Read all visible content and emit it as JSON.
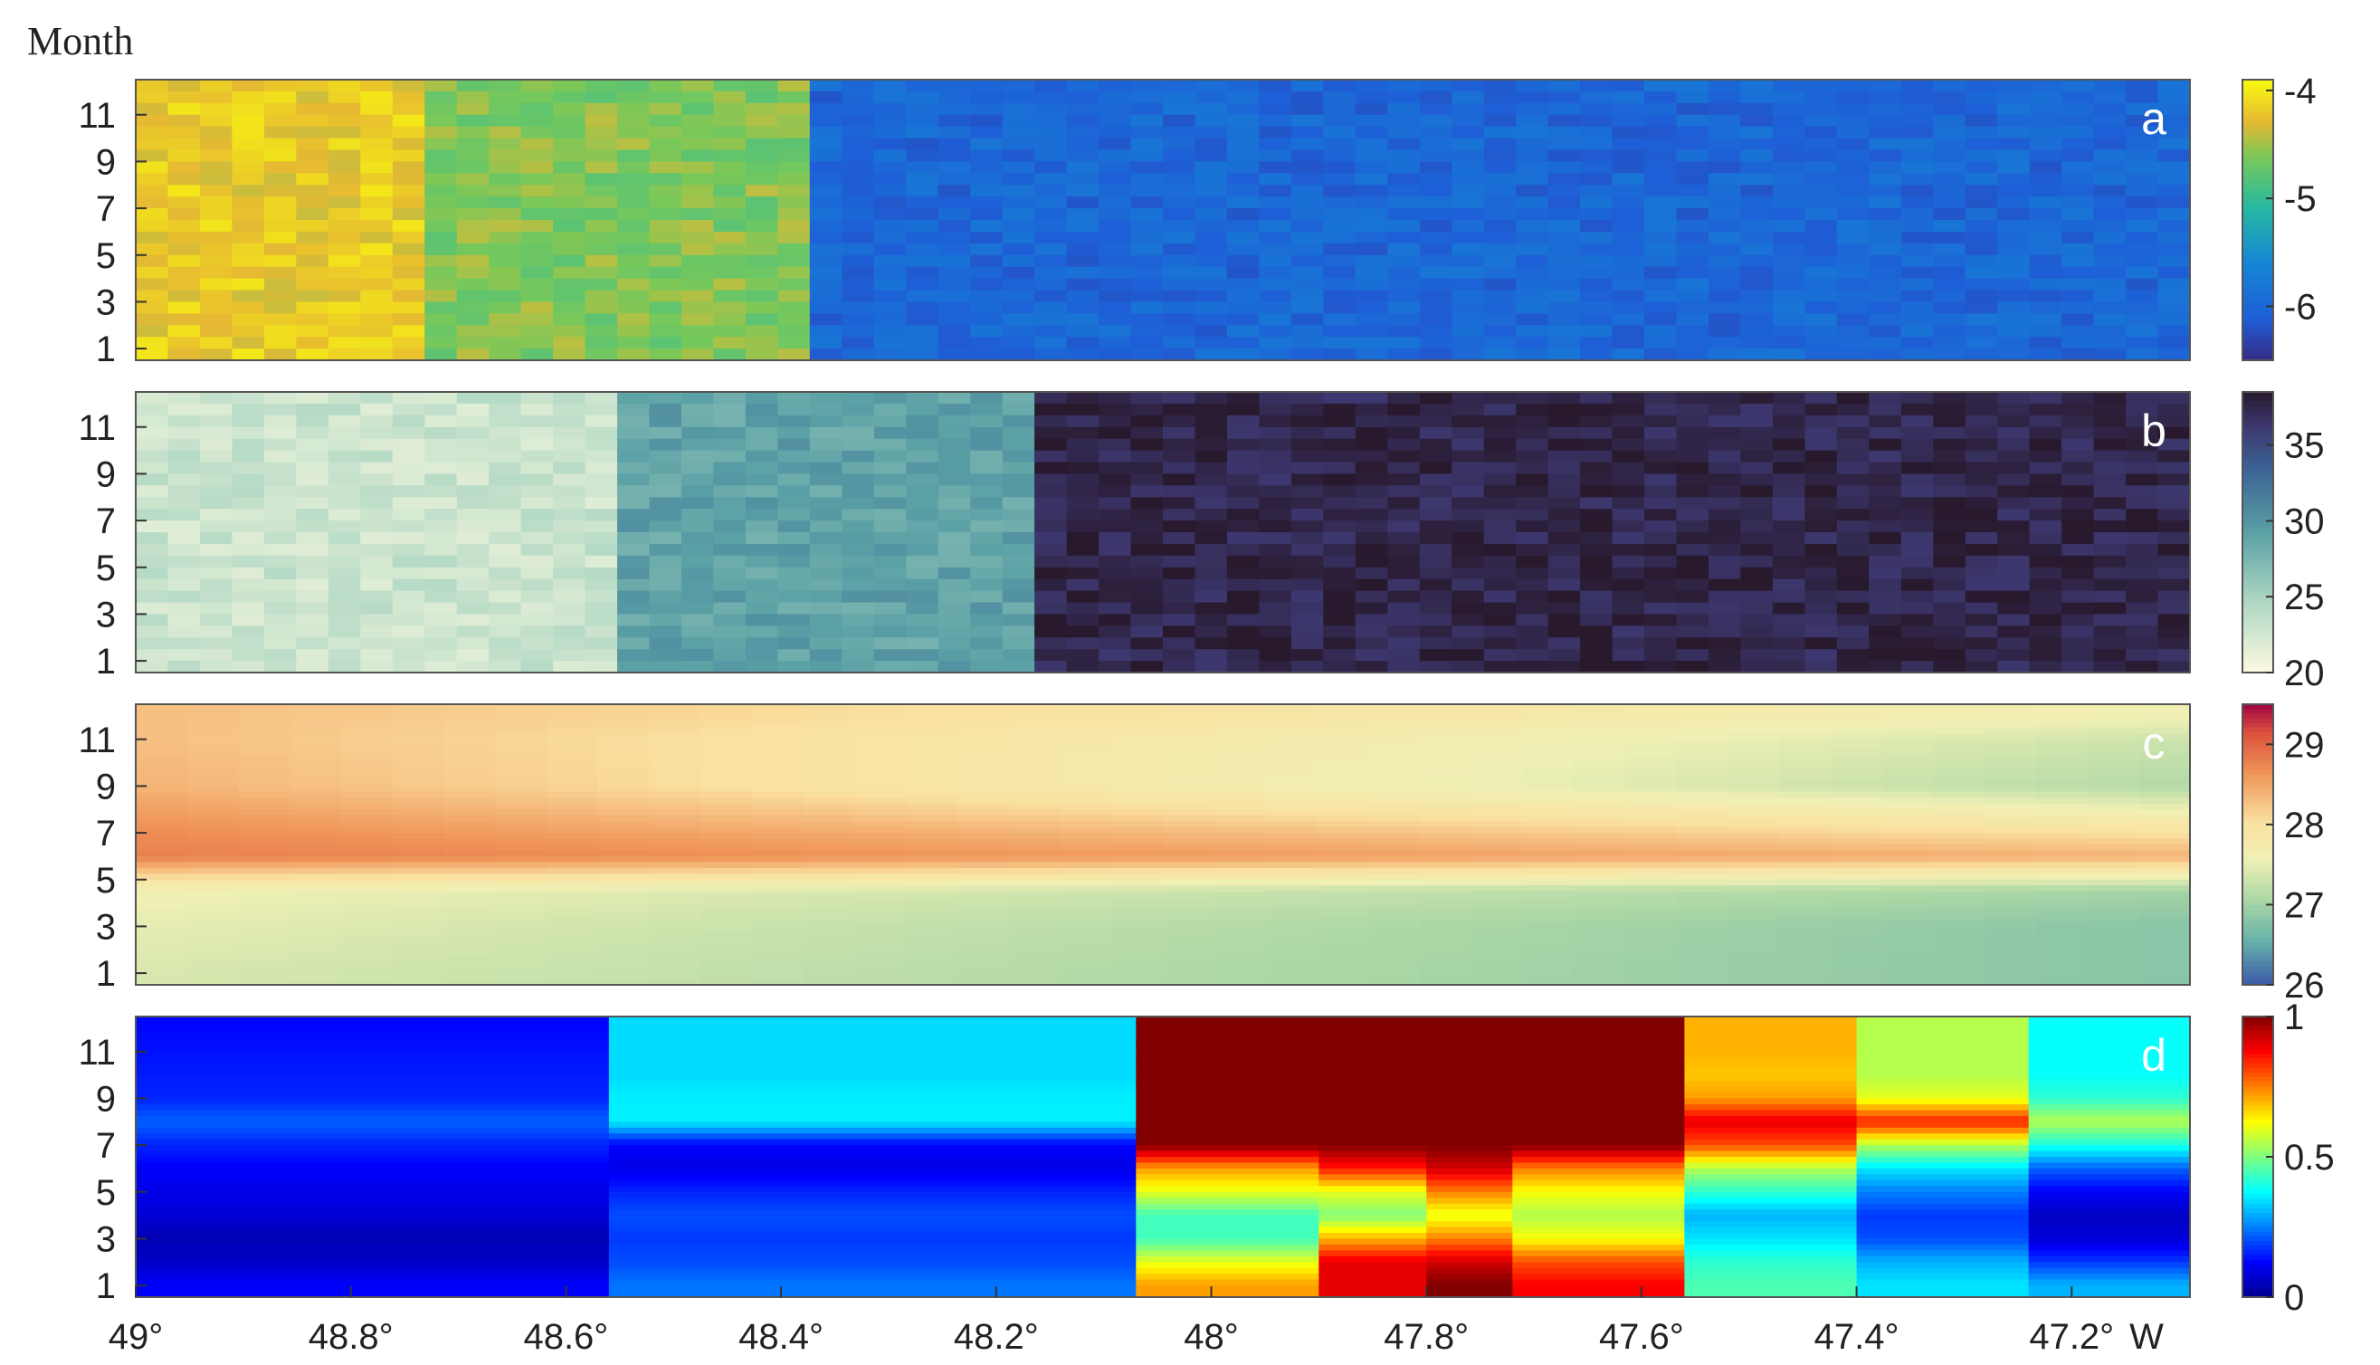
{
  "figure": {
    "y_title": "Month",
    "x_unit": "W",
    "x_ticks": [
      "49°",
      "48.8°",
      "48.6°",
      "48.4°",
      "48.2°",
      "48°",
      "47.8°",
      "47.6°",
      "47.4°",
      "47.2°"
    ]
  },
  "chart_data": [
    {
      "type": "heatmap",
      "panel_label": "a",
      "x_range": [
        49.0,
        47.09
      ],
      "y_ticks": [
        "1",
        "3",
        "5",
        "7",
        "9",
        "11"
      ],
      "colormap": "parula",
      "color_range": [
        -6.5,
        -3.9
      ],
      "colorbar_ticks": [
        "-4",
        "-5",
        "-6"
      ],
      "zones": [
        {
          "x_from": 49.0,
          "x_to": 48.72,
          "value": -4.2
        },
        {
          "x_from": 48.72,
          "x_to": 48.38,
          "value": -4.6
        },
        {
          "x_from": 48.38,
          "x_to": 47.09,
          "value": -6.0
        }
      ]
    },
    {
      "type": "heatmap",
      "panel_label": "b",
      "x_range": [
        49.0,
        47.09
      ],
      "y_ticks": [
        "1",
        "3",
        "5",
        "7",
        "9",
        "11"
      ],
      "colormap": "dense (cream to navy)",
      "color_range": [
        20,
        38.5
      ],
      "colorbar_ticks": [
        "35",
        "30",
        "25",
        "20"
      ],
      "zones": [
        {
          "x_from": 49.0,
          "x_to": 48.55,
          "value": 23
        },
        {
          "x_from": 48.55,
          "x_to": 48.15,
          "value": 29
        },
        {
          "x_from": 48.15,
          "x_to": 47.09,
          "value": 37.5
        }
      ]
    },
    {
      "type": "heatmap",
      "panel_label": "c",
      "x_range": [
        49.0,
        47.09
      ],
      "y_ticks": [
        "1",
        "3",
        "5",
        "7",
        "9",
        "11"
      ],
      "colormap": "spectral",
      "color_range": [
        26,
        29.5
      ],
      "colorbar_ticks": [
        "29",
        "28",
        "27",
        "26"
      ],
      "seasonal_profile": {
        "months": [
          1,
          3,
          4.5,
          6,
          7,
          9,
          11,
          12
        ],
        "west_values": [
          27.4,
          27.5,
          27.6,
          28.8,
          28.7,
          28.4,
          28.3,
          28.3
        ],
        "east_values": [
          26.8,
          26.8,
          27.0,
          28.4,
          28.0,
          27.1,
          27.3,
          27.6
        ]
      }
    },
    {
      "type": "heatmap",
      "panel_label": "d",
      "x_range": [
        49.0,
        47.09
      ],
      "y_ticks": [
        "1",
        "3",
        "5",
        "7",
        "9",
        "11"
      ],
      "colormap": "jet",
      "color_range": [
        0,
        1
      ],
      "colorbar_ticks": [
        "1",
        "0.5",
        "0"
      ],
      "column_profiles": [
        {
          "x_from": 49.0,
          "x_to": 48.56,
          "months": [
            1,
            2,
            3,
            4,
            5,
            6,
            7,
            8,
            9,
            10,
            11,
            12
          ],
          "values": [
            0.12,
            0.06,
            0.04,
            0.08,
            0.1,
            0.12,
            0.16,
            0.22,
            0.16,
            0.15,
            0.14,
            0.13
          ]
        },
        {
          "x_from": 48.56,
          "x_to": 48.07,
          "months": [
            1,
            2,
            3,
            4,
            5,
            6,
            7,
            8,
            9,
            10,
            11,
            12
          ],
          "values": [
            0.24,
            0.2,
            0.18,
            0.2,
            0.16,
            0.1,
            0.12,
            0.36,
            0.36,
            0.34,
            0.34,
            0.34
          ]
        },
        {
          "x_from": 48.07,
          "x_to": 47.9,
          "months": [
            1,
            2,
            3,
            4,
            5,
            6,
            7,
            8,
            9,
            10,
            11,
            12
          ],
          "values": [
            0.72,
            0.6,
            0.44,
            0.44,
            0.6,
            0.72,
            1.0,
            1.0,
            1.0,
            1.0,
            1.0,
            1.0
          ]
        },
        {
          "x_from": 47.9,
          "x_to": 47.8,
          "months": [
            1,
            2,
            3,
            4,
            5,
            6,
            7,
            8,
            9,
            10,
            11,
            12
          ],
          "values": [
            0.9,
            0.9,
            0.7,
            0.5,
            0.6,
            0.85,
            1.0,
            1.0,
            1.0,
            1.0,
            1.0,
            1.0
          ]
        },
        {
          "x_from": 47.8,
          "x_to": 47.72,
          "months": [
            1,
            2,
            3,
            4,
            5,
            6,
            7,
            8,
            9,
            10,
            11,
            12
          ],
          "values": [
            1.0,
            0.92,
            0.75,
            0.6,
            0.75,
            0.92,
            1.0,
            1.0,
            1.0,
            1.0,
            1.0,
            1.0
          ]
        },
        {
          "x_from": 47.72,
          "x_to": 47.56,
          "months": [
            1,
            2,
            3,
            4,
            5,
            6,
            7,
            8,
            9,
            10,
            11,
            12
          ],
          "values": [
            0.88,
            0.8,
            0.62,
            0.55,
            0.62,
            0.75,
            1.0,
            1.0,
            1.0,
            1.0,
            1.0,
            1.0
          ]
        },
        {
          "x_from": 47.56,
          "x_to": 47.4,
          "months": [
            1,
            2,
            3,
            4,
            5,
            6,
            7,
            8,
            9,
            10,
            11,
            12
          ],
          "values": [
            0.45,
            0.42,
            0.35,
            0.3,
            0.42,
            0.55,
            0.8,
            0.9,
            0.72,
            0.68,
            0.7,
            0.7
          ]
        },
        {
          "x_from": 47.4,
          "x_to": 47.24,
          "months": [
            1,
            2,
            3,
            4,
            5,
            6,
            7,
            8,
            9,
            10,
            11,
            12
          ],
          "values": [
            0.35,
            0.3,
            0.2,
            0.18,
            0.25,
            0.35,
            0.55,
            0.85,
            0.6,
            0.55,
            0.55,
            0.55
          ]
        },
        {
          "x_from": 47.24,
          "x_to": 47.09,
          "months": [
            1,
            2,
            3,
            4,
            5,
            6,
            7,
            8,
            9,
            10,
            11,
            12
          ],
          "values": [
            0.3,
            0.18,
            0.08,
            0.06,
            0.12,
            0.22,
            0.4,
            0.55,
            0.42,
            0.38,
            0.38,
            0.38
          ]
        }
      ]
    }
  ]
}
